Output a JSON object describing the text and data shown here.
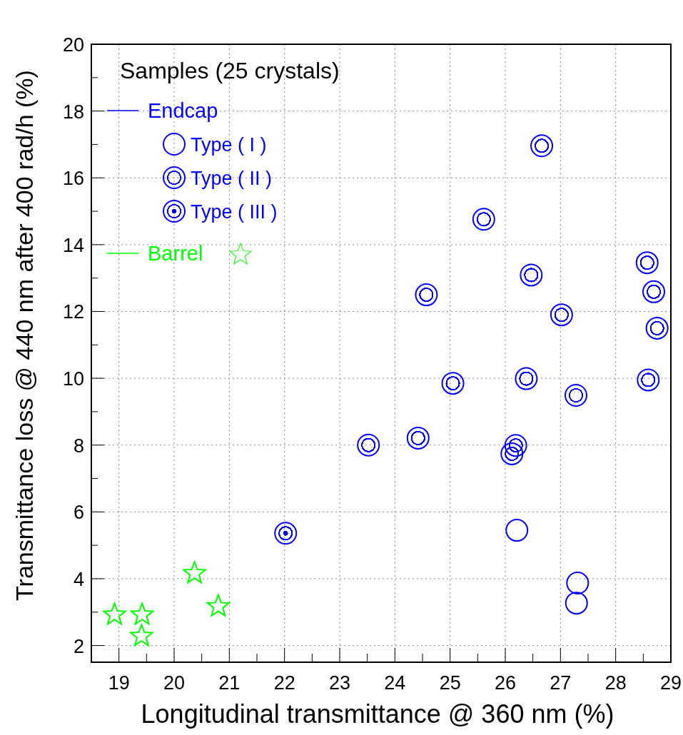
{
  "chart_data": {
    "type": "scatter",
    "title": "Samples (25 crystals)",
    "xlabel": "Longitudinal transmittance @ 360 nm (%)",
    "ylabel": "Transmittance loss @ 440 nm after 400 rad/h (%)",
    "annotations": [
      "Endcap"
    ],
    "xlim": [
      18.5,
      29
    ],
    "xticks": [
      19,
      {
        "value": 19.5,
        "label": null
      },
      20,
      {
        "value": 20.5,
        "label": null
      },
      21,
      {
        "value": 21.5,
        "label": null
      },
      22,
      {
        "value": 22.5,
        "label": null
      },
      23,
      {
        "value": 23.5,
        "label": null
      },
      24,
      {
        "value": 24.5,
        "label": null
      },
      25,
      {
        "value": 25.5,
        "label": null
      },
      26,
      {
        "value": 26.5,
        "label": null
      },
      27,
      {
        "value": 27.5,
        "label": null
      },
      28,
      {
        "value": 28.5,
        "label": null
      },
      29
    ],
    "ylim": [
      1.5,
      20
    ],
    "yticks": [
      2,
      {
        "value": 3,
        "label": null
      },
      4,
      {
        "value": 5,
        "label": null
      },
      6,
      {
        "value": 7,
        "label": null
      },
      8,
      {
        "value": 9,
        "label": null
      },
      10,
      {
        "value": 11,
        "label": null
      },
      12,
      {
        "value": 13,
        "label": null
      },
      14,
      {
        "value": 15,
        "label": null
      },
      16,
      {
        "value": 17,
        "label": null
      },
      18,
      {
        "value": 19,
        "label": null
      },
      20
    ],
    "grid": true,
    "legend": "top left",
    "series": [
      {
        "name": "Type ( I )",
        "color": "#0000ff",
        "marker": "circle",
        "x": [
          26.21,
          27.31,
          27.29
        ],
        "values": [
          5.45,
          3.87,
          3.27
        ]
      },
      {
        "name": "Type ( II )",
        "color": "#0000ff",
        "marker": "circle",
        "x": [
          26.66,
          25.61,
          28.57,
          26.47,
          28.69,
          24.57,
          27.02,
          28.75,
          25.05,
          26.38,
          27.28,
          28.59,
          23.52,
          24.42,
          26.19,
          26.12
        ],
        "values": [
          16.96,
          14.76,
          13.46,
          13.09,
          12.59,
          12.5,
          11.9,
          11.5,
          9.85,
          9.99,
          9.49,
          9.95,
          8.0,
          8.21,
          7.99,
          7.74
        ]
      },
      {
        "name": "Type ( III )",
        "color": "#0000ff",
        "marker": "circle",
        "x": [
          22.02
        ],
        "values": [
          5.36
        ]
      },
      {
        "name": "Barrel",
        "color": "#00ff00",
        "marker": "star",
        "x": [
          18.92,
          19.42,
          19.41,
          20.37,
          20.8
        ],
        "values": [
          2.92,
          2.92,
          2.28,
          4.16,
          3.17
        ]
      }
    ]
  }
}
